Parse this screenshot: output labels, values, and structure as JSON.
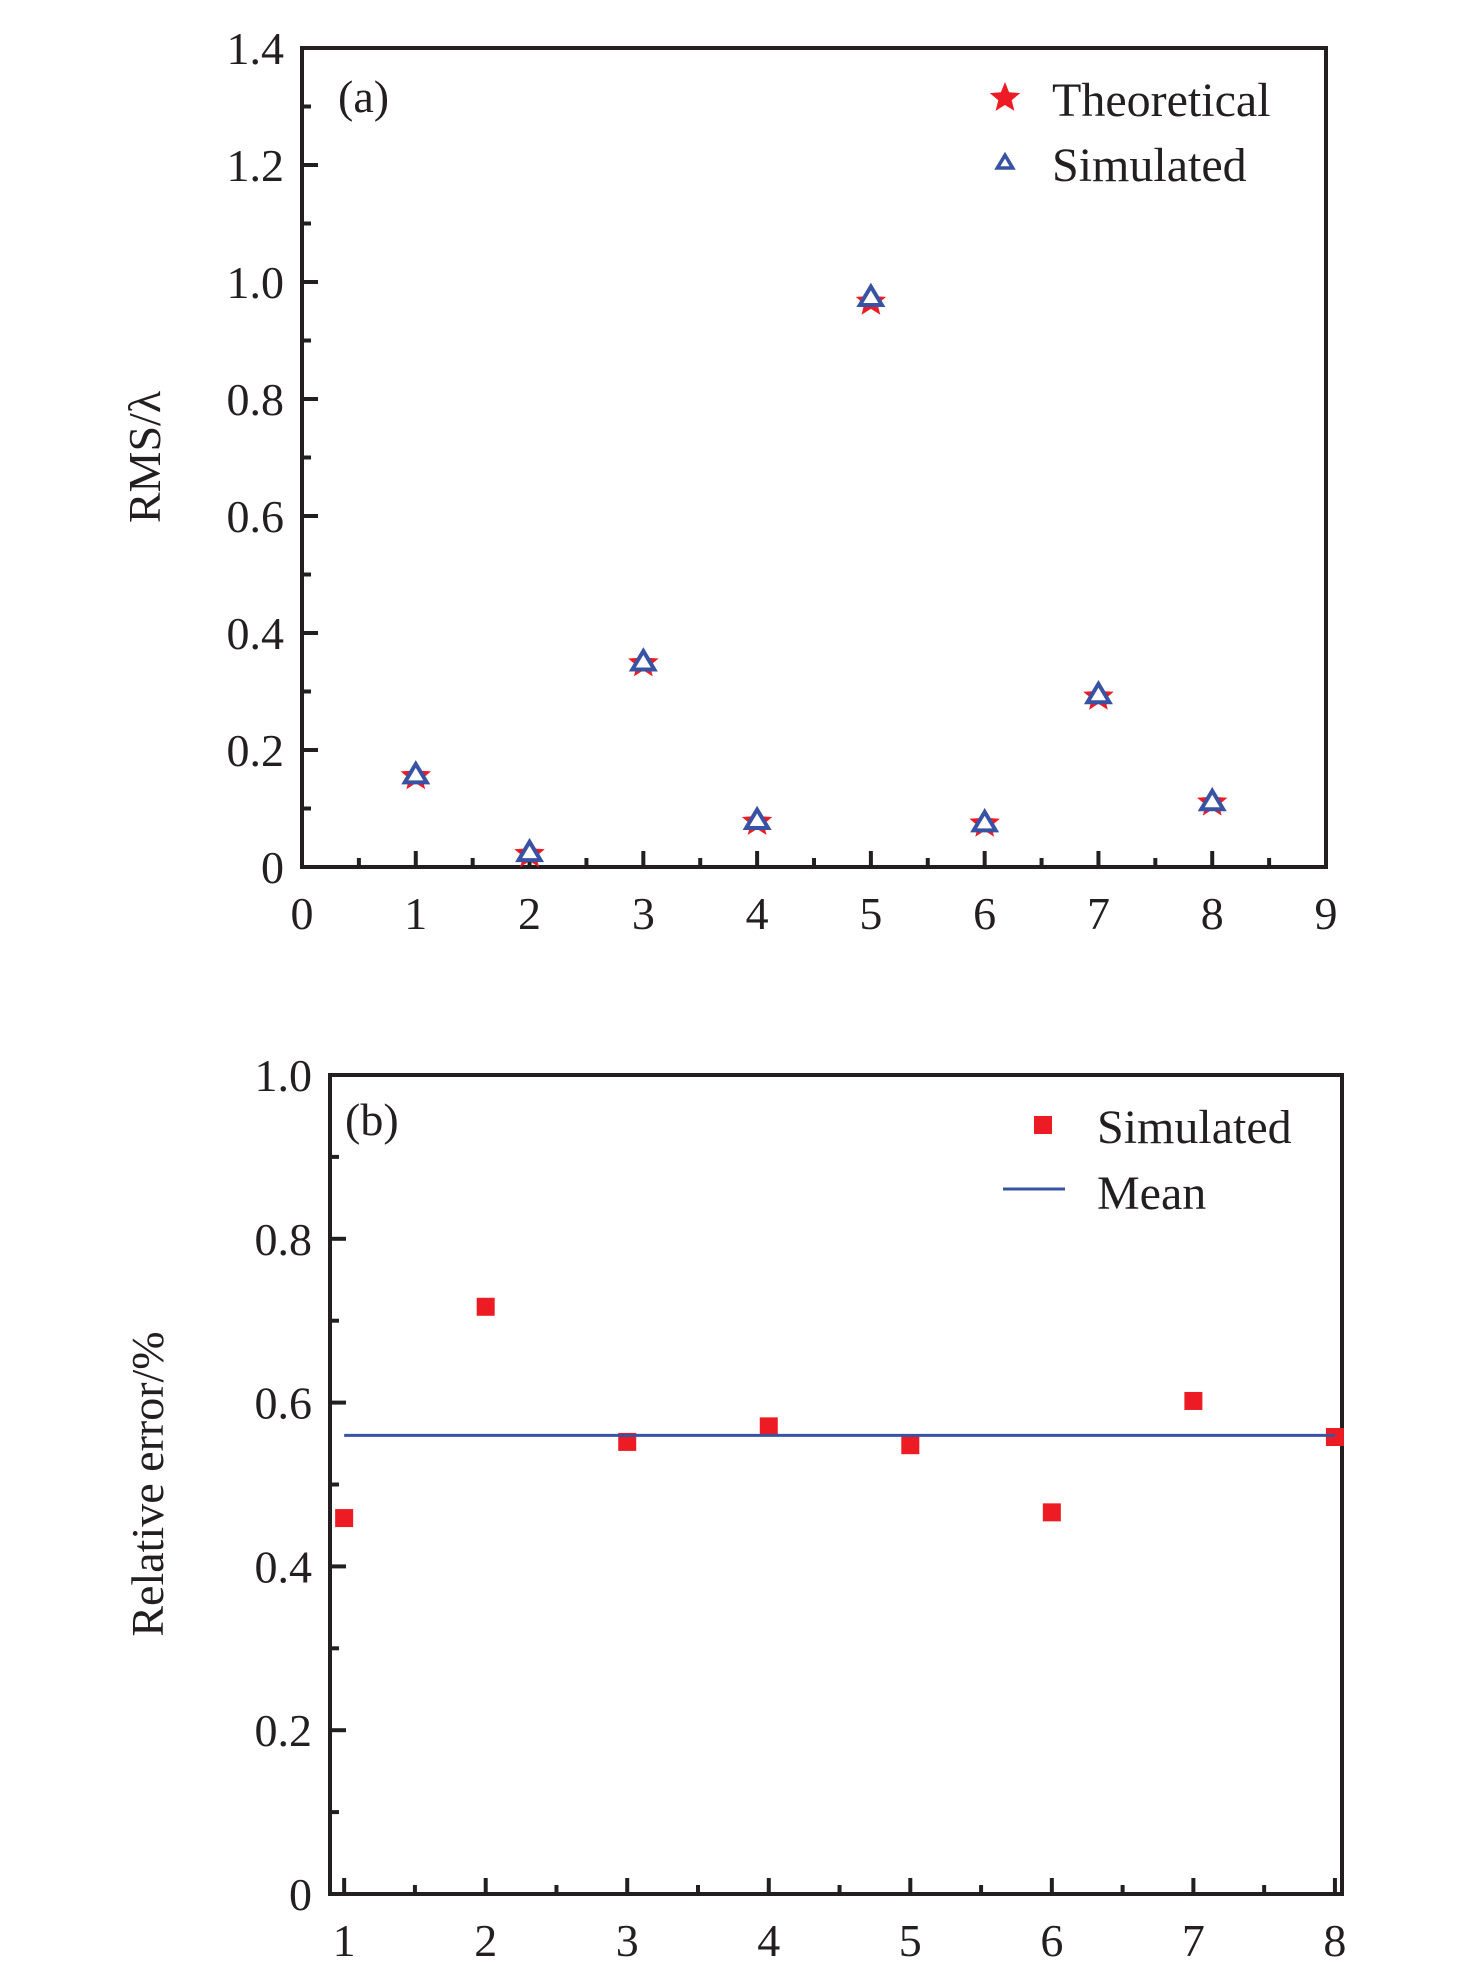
{
  "chart_data": [
    {
      "type": "scatter",
      "panel_label": "(a)",
      "title": "",
      "xlabel": "",
      "ylabel": "RMS/λ",
      "xlim": [
        0,
        9
      ],
      "ylim": [
        0,
        1.4
      ],
      "xticks": [
        0,
        1,
        2,
        3,
        4,
        5,
        6,
        7,
        8,
        9
      ],
      "xtick_labels": [
        "0",
        "1",
        "2",
        "3",
        "4",
        "5",
        "6",
        "7",
        "8",
        "9"
      ],
      "yticks": [
        0,
        0.2,
        0.4,
        0.6,
        0.8,
        1.0,
        1.2,
        1.4
      ],
      "ytick_labels": [
        "0",
        "0.2",
        "0.4",
        "0.6",
        "0.8",
        "1.0",
        "1.2",
        "1.4"
      ],
      "grid": false,
      "legend_position": "top-right",
      "x": [
        1,
        2,
        3,
        4,
        5,
        6,
        7,
        8
      ],
      "series": [
        {
          "name": "Theoretical",
          "marker": "star",
          "color": "#ed1c24",
          "values": [
            0.155,
            0.022,
            0.348,
            0.077,
            0.966,
            0.074,
            0.291,
            0.11
          ]
        },
        {
          "name": "Simulated",
          "marker": "open-triangle",
          "color": "#3953a4",
          "values": [
            0.157,
            0.024,
            0.35,
            0.079,
            0.973,
            0.075,
            0.294,
            0.111
          ]
        }
      ]
    },
    {
      "type": "scatter",
      "panel_label": "(b)",
      "title": "",
      "xlabel": "",
      "ylabel": "Relative error/%",
      "xlim": [
        0.9,
        8.05
      ],
      "ylim": [
        0,
        1.0
      ],
      "xticks": [
        1,
        2,
        3,
        4,
        5,
        6,
        7,
        8
      ],
      "xtick_labels": [
        "1",
        "2",
        "3",
        "4",
        "5",
        "6",
        "7",
        "8"
      ],
      "yticks": [
        0,
        0.2,
        0.4,
        0.6,
        0.8,
        1.0
      ],
      "ytick_labels": [
        "0",
        "0.2",
        "0.4",
        "0.6",
        "0.8",
        "1.0"
      ],
      "grid": false,
      "legend_position": "top-right",
      "x": [
        1,
        2,
        3,
        4,
        5,
        6,
        7,
        8
      ],
      "series": [
        {
          "name": "Simulated",
          "marker": "square",
          "color": "#ed1c24",
          "values": [
            0.459,
            0.717,
            0.552,
            0.571,
            0.548,
            0.466,
            0.602,
            0.558
          ]
        },
        {
          "name": "Mean",
          "marker": "line",
          "color": "#3953a4",
          "values": [
            0.56,
            0.56,
            0.56,
            0.56,
            0.56,
            0.56,
            0.56,
            0.56
          ]
        }
      ]
    }
  ]
}
